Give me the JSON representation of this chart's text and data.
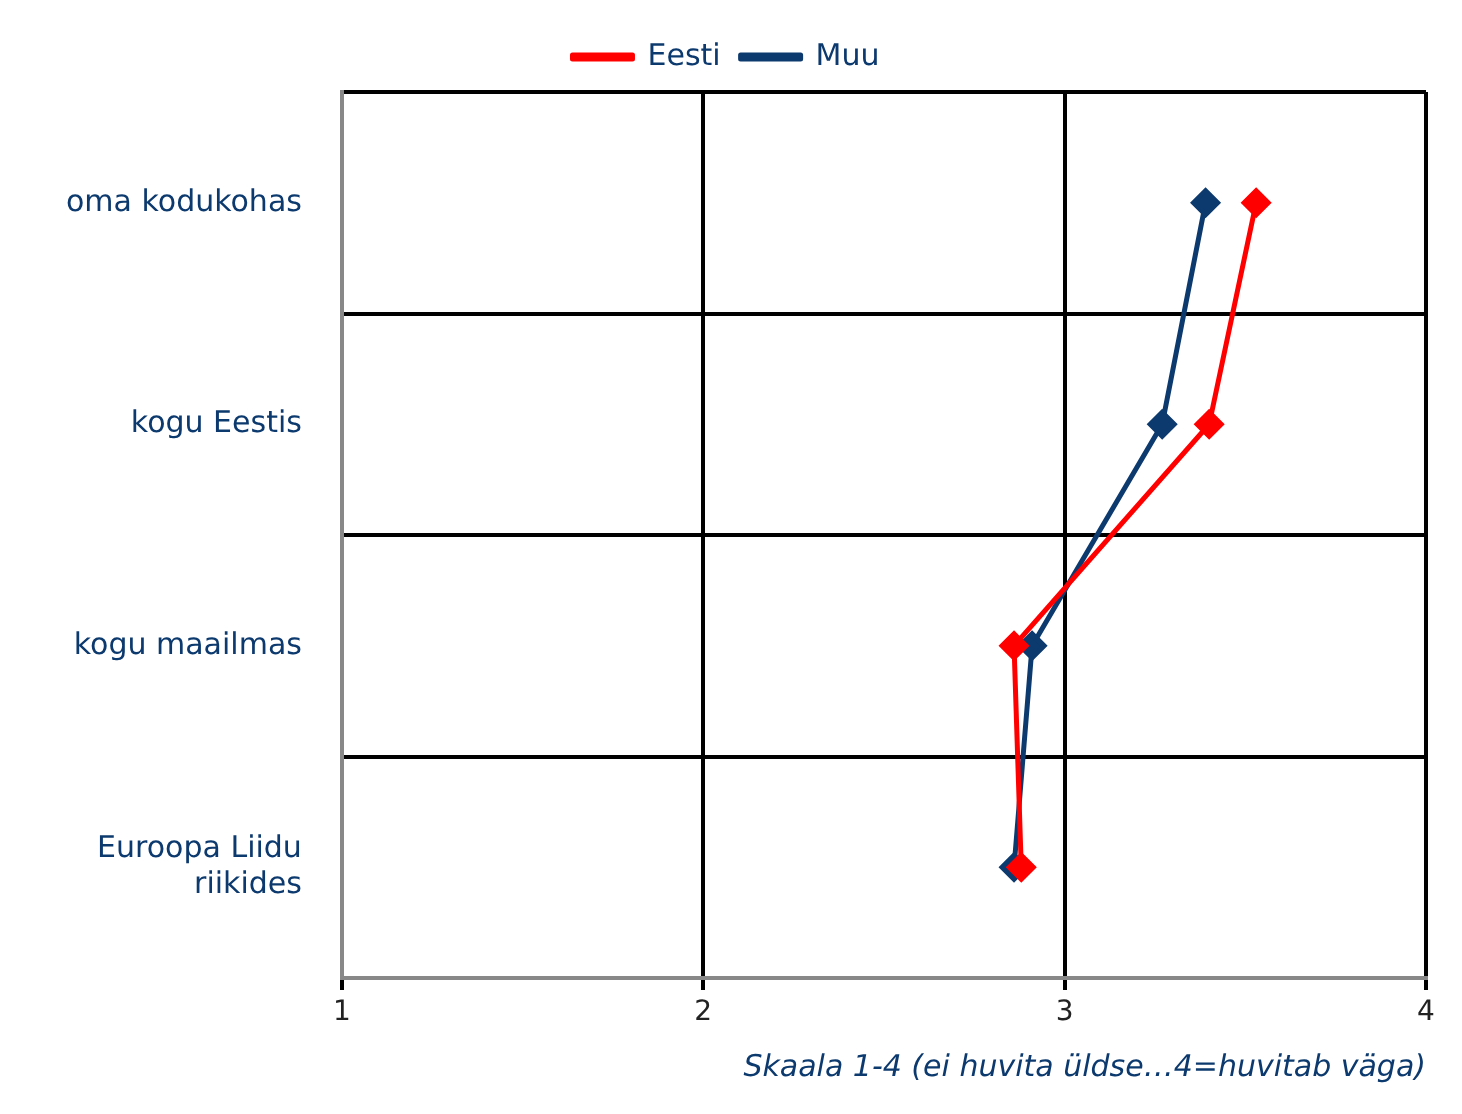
{
  "chart_data": {
    "type": "line",
    "orientation": "horizontal",
    "categories": [
      "oma kodukohas",
      "kogu Eestis",
      "kogu maailmas",
      "Euroopa Liidu riikides"
    ],
    "series": [
      {
        "name": "Eesti",
        "color": "#ff0000",
        "values": [
          3.53,
          3.4,
          2.86,
          2.88
        ]
      },
      {
        "name": "Muu",
        "color": "#0d3a6e",
        "values": [
          3.39,
          3.27,
          2.91,
          2.86
        ]
      }
    ],
    "xlim": [
      1,
      4
    ],
    "xticks": [
      1,
      2,
      3,
      4
    ],
    "grid": true,
    "legend": "top",
    "marker": "diamond",
    "annotations": [
      "Skaala 1-4 (ei huvita üldse…4=huvitab väga)"
    ]
  }
}
